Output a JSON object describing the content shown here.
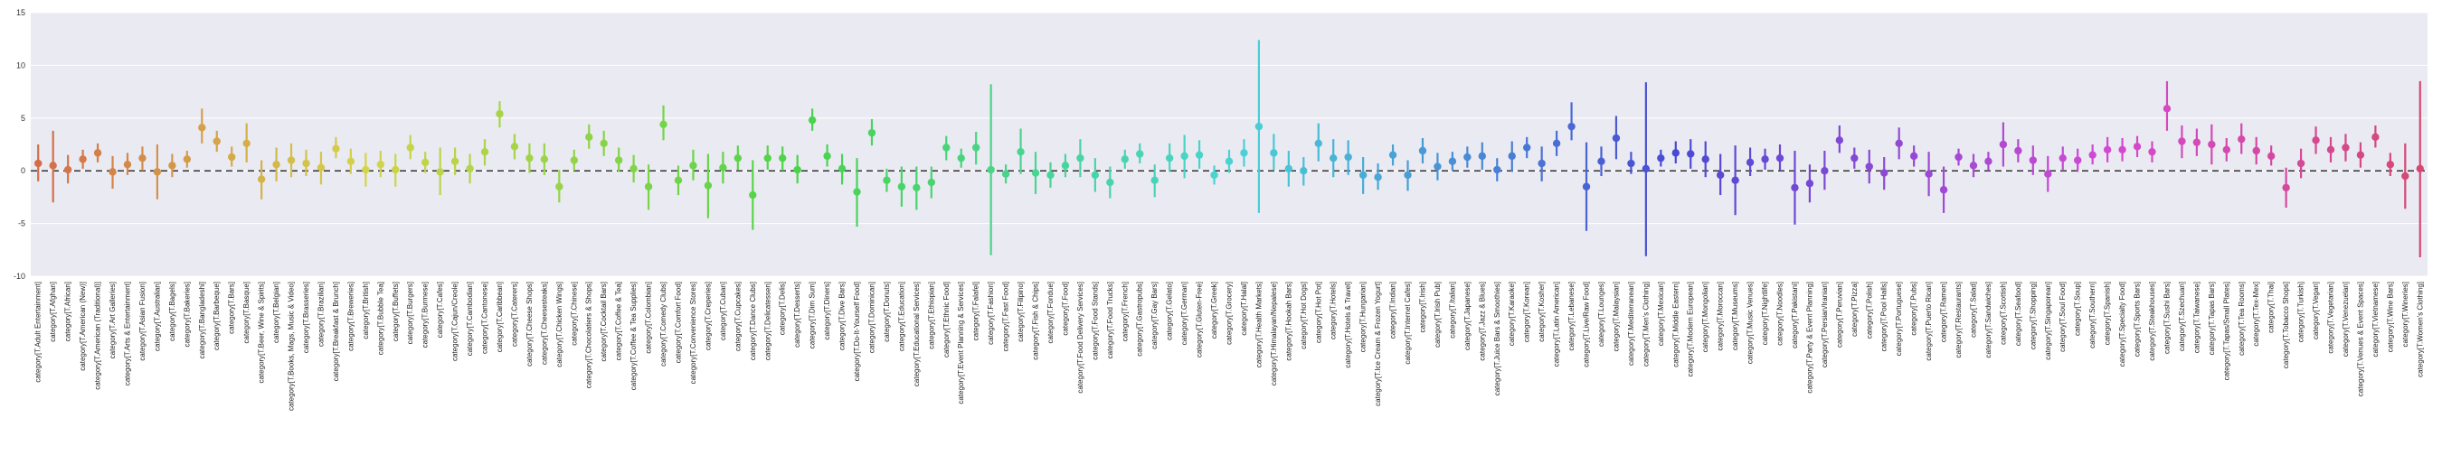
{
  "chart_data": {
    "type": "scatter",
    "title": "",
    "xlabel": "",
    "ylabel": "",
    "ylim": [
      -10,
      15
    ],
    "yticks": [
      -10,
      -5,
      0,
      5,
      10,
      15
    ],
    "grid": true,
    "reference_line": {
      "y": 0,
      "style": "dashed"
    },
    "palette": "husl",
    "points": [
      {
        "category": "category[T.Adult Entertainment]",
        "y": 0.7,
        "lo": -1.0,
        "hi": 2.5
      },
      {
        "category": "category[T.Afghan]",
        "y": 0.5,
        "lo": -3.0,
        "hi": 3.8
      },
      {
        "category": "category[T.African]",
        "y": 0.1,
        "lo": -1.2,
        "hi": 1.5
      },
      {
        "category": "category[T.American (New)]",
        "y": 1.1,
        "lo": 0.2,
        "hi": 2.0
      },
      {
        "category": "category[T.American (Traditional)]",
        "y": 1.7,
        "lo": 0.8,
        "hi": 2.6
      },
      {
        "category": "category[T.Art Galleries]",
        "y": -0.1,
        "lo": -1.7,
        "hi": 1.4
      },
      {
        "category": "category[T.Arts & Entertainment]",
        "y": 0.6,
        "lo": -0.4,
        "hi": 1.7
      },
      {
        "category": "category[T.Asian Fusion]",
        "y": 1.2,
        "lo": 0.0,
        "hi": 2.3
      },
      {
        "category": "category[T.Australian]",
        "y": -0.1,
        "lo": -2.7,
        "hi": 2.5
      },
      {
        "category": "category[T.Bagels]",
        "y": 0.5,
        "lo": -0.6,
        "hi": 1.6
      },
      {
        "category": "category[T.Bakeries]",
        "y": 1.1,
        "lo": 0.3,
        "hi": 1.9
      },
      {
        "category": "category[T.Bangladeshi]",
        "y": 4.1,
        "lo": 2.6,
        "hi": 5.9
      },
      {
        "category": "category[T.Barbeque]",
        "y": 2.8,
        "lo": 1.8,
        "hi": 3.8
      },
      {
        "category": "category[T.Bars]",
        "y": 1.3,
        "lo": 0.4,
        "hi": 2.3
      },
      {
        "category": "category[T.Basque]",
        "y": 2.6,
        "lo": 0.8,
        "hi": 4.5
      },
      {
        "category": "category[T.Beer, Wine & Spirits]",
        "y": -0.8,
        "lo": -2.7,
        "hi": 1.0
      },
      {
        "category": "category[T.Belgian]",
        "y": 0.6,
        "lo": -1.0,
        "hi": 2.2
      },
      {
        "category": "category[T.Books, Mags, Music & Video]",
        "y": 1.0,
        "lo": -0.6,
        "hi": 2.6
      },
      {
        "category": "category[T.Brasseries]",
        "y": 0.7,
        "lo": -0.5,
        "hi": 2.0
      },
      {
        "category": "category[T.Brazilian]",
        "y": 0.3,
        "lo": -1.3,
        "hi": 1.8
      },
      {
        "category": "category[T.Breakfast & Brunch]",
        "y": 2.1,
        "lo": 1.2,
        "hi": 3.2
      },
      {
        "category": "category[T.Breweries]",
        "y": 0.9,
        "lo": -0.3,
        "hi": 2.1
      },
      {
        "category": "category[T.British]",
        "y": 0.1,
        "lo": -1.5,
        "hi": 1.7
      },
      {
        "category": "category[T.Bubble Tea]",
        "y": 0.6,
        "lo": -0.6,
        "hi": 1.9
      },
      {
        "category": "category[T.Buffets]",
        "y": 0.1,
        "lo": -1.5,
        "hi": 1.6
      },
      {
        "category": "category[T.Burgers]",
        "y": 2.2,
        "lo": 1.1,
        "hi": 3.4
      },
      {
        "category": "category[T.Burmese]",
        "y": 0.8,
        "lo": -0.2,
        "hi": 1.8
      },
      {
        "category": "category[T.Cafes]",
        "y": -0.1,
        "lo": -2.3,
        "hi": 2.2
      },
      {
        "category": "category[T.Cajun/Creole]",
        "y": 0.9,
        "lo": -0.4,
        "hi": 2.2
      },
      {
        "category": "category[T.Cambodian]",
        "y": 0.2,
        "lo": -1.2,
        "hi": 1.6
      },
      {
        "category": "category[T.Cantonese]",
        "y": 1.8,
        "lo": 0.5,
        "hi": 3.0
      },
      {
        "category": "category[T.Caribbean]",
        "y": 5.4,
        "lo": 4.1,
        "hi": 6.6
      },
      {
        "category": "category[T.Caterers]",
        "y": 2.3,
        "lo": 1.1,
        "hi": 3.5
      },
      {
        "category": "category[T.Cheese Shops]",
        "y": 1.2,
        "lo": -0.2,
        "hi": 2.6
      },
      {
        "category": "category[T.Cheesesteaks]",
        "y": 1.1,
        "lo": -0.4,
        "hi": 2.6
      },
      {
        "category": "category[T.Chicken Wings]",
        "y": -1.5,
        "lo": -3.0,
        "hi": 0.1
      },
      {
        "category": "category[T.Chinese]",
        "y": 1.0,
        "lo": 0.0,
        "hi": 2.0
      },
      {
        "category": "category[T.Chocolatiers & Shops]",
        "y": 3.2,
        "lo": 2.1,
        "hi": 4.4
      },
      {
        "category": "category[T.Cocktail Bars]",
        "y": 2.6,
        "lo": 1.4,
        "hi": 3.8
      },
      {
        "category": "category[T.Coffee & Tea]",
        "y": 1.0,
        "lo": -0.1,
        "hi": 2.2
      },
      {
        "category": "category[T.Coffee & Tea Supplies]",
        "y": 0.2,
        "lo": -1.1,
        "hi": 1.5
      },
      {
        "category": "category[T.Colombian]",
        "y": -1.5,
        "lo": -3.7,
        "hi": 0.6
      },
      {
        "category": "category[T.Comedy Clubs]",
        "y": 4.4,
        "lo": 2.9,
        "hi": 6.2
      },
      {
        "category": "category[T.Comfort Food]",
        "y": -0.9,
        "lo": -2.3,
        "hi": 0.5
      },
      {
        "category": "category[T.Convenience Stores]",
        "y": 0.5,
        "lo": -0.9,
        "hi": 2.0
      },
      {
        "category": "category[T.Creperies]",
        "y": -1.4,
        "lo": -4.5,
        "hi": 1.6
      },
      {
        "category": "category[T.Cuban]",
        "y": 0.3,
        "lo": -1.2,
        "hi": 1.8
      },
      {
        "category": "category[T.Cupcakes]",
        "y": 1.2,
        "lo": 0.1,
        "hi": 2.4
      },
      {
        "category": "category[T.Dance Clubs]",
        "y": -2.3,
        "lo": -5.6,
        "hi": 1.0
      },
      {
        "category": "category[T.Delicatessen]",
        "y": 1.2,
        "lo": 0.1,
        "hi": 2.4
      },
      {
        "category": "category[T.Delis]",
        "y": 1.2,
        "lo": 0.0,
        "hi": 2.3
      },
      {
        "category": "category[T.Desserts]",
        "y": 0.1,
        "lo": -1.2,
        "hi": 1.5
      },
      {
        "category": "category[T.Dim Sum]",
        "y": 4.8,
        "lo": 3.8,
        "hi": 5.9
      },
      {
        "category": "category[T.Diners]",
        "y": 1.4,
        "lo": 0.4,
        "hi": 2.5
      },
      {
        "category": "category[T.Dive Bars]",
        "y": 0.2,
        "lo": -1.3,
        "hi": 1.6
      },
      {
        "category": "category[T.Do-It-Yourself Food]",
        "y": -2.0,
        "lo": -5.3,
        "hi": 1.2
      },
      {
        "category": "category[T.Dominican]",
        "y": 3.6,
        "lo": 2.4,
        "hi": 4.9
      },
      {
        "category": "category[T.Donuts]",
        "y": -0.9,
        "lo": -2.0,
        "hi": 0.2
      },
      {
        "category": "category[T.Education]",
        "y": -1.5,
        "lo": -3.4,
        "hi": 0.4
      },
      {
        "category": "category[T.Educational Services]",
        "y": -1.6,
        "lo": -3.7,
        "hi": 0.4
      },
      {
        "category": "category[T.Ethiopian]",
        "y": -1.1,
        "lo": -2.6,
        "hi": 0.4
      },
      {
        "category": "category[T.Ethnic Food]",
        "y": 2.2,
        "lo": 1.0,
        "hi": 3.3
      },
      {
        "category": "category[T.Event Planning & Services]",
        "y": 1.2,
        "lo": 0.3,
        "hi": 2.1
      },
      {
        "category": "category[T.Falafel]",
        "y": 2.2,
        "lo": 0.6,
        "hi": 3.7
      },
      {
        "category": "category[T.Fashion]",
        "y": 0.1,
        "lo": -8.0,
        "hi": 8.2
      },
      {
        "category": "category[T.Fast Food]",
        "y": -0.3,
        "lo": -1.2,
        "hi": 0.6
      },
      {
        "category": "category[T.Filipino]",
        "y": 1.8,
        "lo": -0.3,
        "hi": 4.0
      },
      {
        "category": "category[T.Fish & Chips]",
        "y": -0.2,
        "lo": -2.2,
        "hi": 1.8
      },
      {
        "category": "category[T.Fondue]",
        "y": -0.4,
        "lo": -1.6,
        "hi": 0.8
      },
      {
        "category": "category[T.Food]",
        "y": 0.5,
        "lo": -0.6,
        "hi": 1.6
      },
      {
        "category": "category[T.Food Delivery Services]",
        "y": 1.2,
        "lo": -0.6,
        "hi": 3.0
      },
      {
        "category": "category[T.Food Stands]",
        "y": -0.4,
        "lo": -2.0,
        "hi": 1.2
      },
      {
        "category": "category[T.Food Trucks]",
        "y": -1.1,
        "lo": -2.6,
        "hi": 0.4
      },
      {
        "category": "category[T.French]",
        "y": 1.1,
        "lo": 0.2,
        "hi": 2.0
      },
      {
        "category": "category[T.Gastropubs]",
        "y": 1.6,
        "lo": 0.7,
        "hi": 2.6
      },
      {
        "category": "category[T.Gay Bars]",
        "y": -0.9,
        "lo": -2.5,
        "hi": 0.6
      },
      {
        "category": "category[T.Gelato]",
        "y": 1.2,
        "lo": -0.1,
        "hi": 2.6
      },
      {
        "category": "category[T.German]",
        "y": 1.4,
        "lo": -0.7,
        "hi": 3.4
      },
      {
        "category": "category[T.Gluten-Free]",
        "y": 1.5,
        "lo": 0.2,
        "hi": 2.9
      },
      {
        "category": "category[T.Greek]",
        "y": -0.4,
        "lo": -1.3,
        "hi": 0.5
      },
      {
        "category": "category[T.Grocery]",
        "y": 0.9,
        "lo": -0.2,
        "hi": 2.0
      },
      {
        "category": "category[T.Halal]",
        "y": 1.7,
        "lo": 0.4,
        "hi": 3.0
      },
      {
        "category": "category[T.Health Markets]",
        "y": 4.2,
        "lo": -4.0,
        "hi": 12.4
      },
      {
        "category": "category[T.Himalayan/Nepalese]",
        "y": 1.7,
        "lo": 0.1,
        "hi": 3.5
      },
      {
        "category": "category[T.Hookah Bars]",
        "y": 0.2,
        "lo": -1.5,
        "hi": 1.9
      },
      {
        "category": "category[T.Hot Dogs]",
        "y": 0.0,
        "lo": -1.4,
        "hi": 1.3
      },
      {
        "category": "category[T.Hot Pot]",
        "y": 2.6,
        "lo": 0.9,
        "hi": 4.5
      },
      {
        "category": "category[T.Hotels]",
        "y": 1.2,
        "lo": -0.6,
        "hi": 3.0
      },
      {
        "category": "category[T.Hotels & Travel]",
        "y": 1.3,
        "lo": -0.4,
        "hi": 2.9
      },
      {
        "category": "category[T.Hungarian]",
        "y": -0.4,
        "lo": -2.2,
        "hi": 1.3
      },
      {
        "category": "category[T.Ice Cream & Frozen Yogurt]",
        "y": -0.6,
        "lo": -1.8,
        "hi": 0.7
      },
      {
        "category": "category[T.Indian]",
        "y": 1.5,
        "lo": 0.5,
        "hi": 2.5
      },
      {
        "category": "category[T.Internet Cafes]",
        "y": -0.4,
        "lo": -1.9,
        "hi": 1.0
      },
      {
        "category": "category[T.Irish]",
        "y": 1.9,
        "lo": 0.7,
        "hi": 3.1
      },
      {
        "category": "category[T.Irish Pub]",
        "y": 0.4,
        "lo": -0.9,
        "hi": 1.7
      },
      {
        "category": "category[T.Italian]",
        "y": 0.9,
        "lo": 0.0,
        "hi": 1.8
      },
      {
        "category": "category[T.Japanese]",
        "y": 1.3,
        "lo": 0.3,
        "hi": 2.3
      },
      {
        "category": "category[T.Jazz & Blues]",
        "y": 1.4,
        "lo": 0.1,
        "hi": 2.7
      },
      {
        "category": "category[T.Juice Bars & Smoothies]",
        "y": 0.1,
        "lo": -1.0,
        "hi": 1.2
      },
      {
        "category": "category[T.Karaoke]",
        "y": 1.4,
        "lo": -0.1,
        "hi": 2.8
      },
      {
        "category": "category[T.Korean]",
        "y": 2.2,
        "lo": 1.2,
        "hi": 3.2
      },
      {
        "category": "category[T.Kosher]",
        "y": 0.7,
        "lo": -1.0,
        "hi": 2.3
      },
      {
        "category": "category[T.Latin American]",
        "y": 2.6,
        "lo": 1.4,
        "hi": 3.8
      },
      {
        "category": "category[T.Lebanese]",
        "y": 4.2,
        "lo": 2.9,
        "hi": 6.5
      },
      {
        "category": "category[T.Live/Raw Food]",
        "y": -1.5,
        "lo": -5.7,
        "hi": 2.7
      },
      {
        "category": "category[T.Lounges]",
        "y": 0.9,
        "lo": -0.5,
        "hi": 2.3
      },
      {
        "category": "category[T.Malaysian]",
        "y": 3.1,
        "lo": 1.1,
        "hi": 5.2
      },
      {
        "category": "category[T.Mediterranean]",
        "y": 0.7,
        "lo": -0.3,
        "hi": 1.8
      },
      {
        "category": "category[T.Men's Clothing]",
        "y": 0.2,
        "lo": -8.1,
        "hi": 8.4
      },
      {
        "category": "category[T.Mexican]",
        "y": 1.2,
        "lo": 0.4,
        "hi": 2.0
      },
      {
        "category": "category[T.Middle Eastern]",
        "y": 1.7,
        "lo": 0.7,
        "hi": 2.8
      },
      {
        "category": "category[T.Modern European]",
        "y": 1.6,
        "lo": 0.2,
        "hi": 3.0
      },
      {
        "category": "category[T.Mongolian]",
        "y": 1.1,
        "lo": -0.6,
        "hi": 2.8
      },
      {
        "category": "category[T.Moroccan]",
        "y": -0.4,
        "lo": -2.3,
        "hi": 1.6
      },
      {
        "category": "category[T.Museums]",
        "y": -0.9,
        "lo": -4.2,
        "hi": 2.4
      },
      {
        "category": "category[T.Music Venues]",
        "y": 0.8,
        "lo": -0.5,
        "hi": 2.2
      },
      {
        "category": "category[T.Nightlife]",
        "y": 1.1,
        "lo": 0.1,
        "hi": 2.1
      },
      {
        "category": "category[T.Noodles]",
        "y": 1.2,
        "lo": 0.0,
        "hi": 2.5
      },
      {
        "category": "category[T.Pakistani]",
        "y": -1.6,
        "lo": -5.1,
        "hi": 1.9
      },
      {
        "category": "category[T.Party & Event Planning]",
        "y": -1.2,
        "lo": -3.0,
        "hi": 0.6
      },
      {
        "category": "category[T.Persian/Iranian]",
        "y": 0.0,
        "lo": -1.8,
        "hi": 1.9
      },
      {
        "category": "category[T.Peruvian]",
        "y": 2.9,
        "lo": 1.7,
        "hi": 4.3
      },
      {
        "category": "category[T.Pizza]",
        "y": 1.2,
        "lo": 0.2,
        "hi": 2.2
      },
      {
        "category": "category[T.Polish]",
        "y": 0.4,
        "lo": -1.2,
        "hi": 2.0
      },
      {
        "category": "category[T.Pool Halls]",
        "y": -0.2,
        "lo": -1.8,
        "hi": 1.3
      },
      {
        "category": "category[T.Portuguese]",
        "y": 2.6,
        "lo": 1.1,
        "hi": 4.1
      },
      {
        "category": "category[T.Pubs]",
        "y": 1.4,
        "lo": 0.4,
        "hi": 2.4
      },
      {
        "category": "category[T.Puerto Rican]",
        "y": -0.3,
        "lo": -2.4,
        "hi": 1.8
      },
      {
        "category": "category[T.Ramen]",
        "y": -1.8,
        "lo": -4.0,
        "hi": 0.4
      },
      {
        "category": "category[T.Restaurants]",
        "y": 1.3,
        "lo": 0.5,
        "hi": 2.1
      },
      {
        "category": "category[T.Salad]",
        "y": 0.5,
        "lo": -0.6,
        "hi": 1.6
      },
      {
        "category": "category[T.Sandwiches]",
        "y": 0.9,
        "lo": 0.0,
        "hi": 1.8
      },
      {
        "category": "category[T.Scottish]",
        "y": 2.5,
        "lo": 0.4,
        "hi": 4.6
      },
      {
        "category": "category[T.Seafood]",
        "y": 1.9,
        "lo": 0.8,
        "hi": 3.0
      },
      {
        "category": "category[T.Shopping]",
        "y": 1.0,
        "lo": -0.4,
        "hi": 2.4
      },
      {
        "category": "category[T.Singaporean]",
        "y": -0.3,
        "lo": -2.0,
        "hi": 1.4
      },
      {
        "category": "category[T.Soul Food]",
        "y": 1.2,
        "lo": 0.1,
        "hi": 2.3
      },
      {
        "category": "category[T.Soup]",
        "y": 1.0,
        "lo": -0.1,
        "hi": 2.1
      },
      {
        "category": "category[T.Southern]",
        "y": 1.5,
        "lo": 0.6,
        "hi": 2.5
      },
      {
        "category": "category[T.Spanish]",
        "y": 2.0,
        "lo": 0.8,
        "hi": 3.2
      },
      {
        "category": "category[T.Specialty Food]",
        "y": 2.0,
        "lo": 0.9,
        "hi": 3.1
      },
      {
        "category": "category[T.Sports Bars]",
        "y": 2.3,
        "lo": 1.3,
        "hi": 3.3
      },
      {
        "category": "category[T.Steakhouses]",
        "y": 1.8,
        "lo": 0.8,
        "hi": 2.8
      },
      {
        "category": "category[T.Sushi Bars]",
        "y": 5.9,
        "lo": 3.8,
        "hi": 8.5
      },
      {
        "category": "category[T.Szechuan]",
        "y": 2.8,
        "lo": 1.2,
        "hi": 4.3
      },
      {
        "category": "category[T.Taiwanese]",
        "y": 2.7,
        "lo": 1.4,
        "hi": 4.0
      },
      {
        "category": "category[T.Tapas Bars]",
        "y": 2.5,
        "lo": 0.6,
        "hi": 4.4
      },
      {
        "category": "category[T.Tapas/Small Plates]",
        "y": 2.0,
        "lo": 0.9,
        "hi": 3.1
      },
      {
        "category": "category[T.Tea Rooms]",
        "y": 3.0,
        "lo": 1.6,
        "hi": 4.5
      },
      {
        "category": "category[T.Tex-Mex]",
        "y": 1.9,
        "lo": 0.6,
        "hi": 3.2
      },
      {
        "category": "category[T.Thai]",
        "y": 1.4,
        "lo": 0.5,
        "hi": 2.4
      },
      {
        "category": "category[T.Tobacco Shops]",
        "y": -1.6,
        "lo": -3.5,
        "hi": 0.3
      },
      {
        "category": "category[T.Turkish]",
        "y": 0.7,
        "lo": -0.7,
        "hi": 2.1
      },
      {
        "category": "category[T.Vegan]",
        "y": 2.9,
        "lo": 1.6,
        "hi": 4.2
      },
      {
        "category": "category[T.Vegetarian]",
        "y": 2.0,
        "lo": 0.8,
        "hi": 3.2
      },
      {
        "category": "category[T.Venezuelan]",
        "y": 2.2,
        "lo": 0.9,
        "hi": 3.5
      },
      {
        "category": "category[T.Venues & Event Spaces]",
        "y": 1.5,
        "lo": 0.3,
        "hi": 2.7
      },
      {
        "category": "category[T.Vietnamese]",
        "y": 3.2,
        "lo": 2.2,
        "hi": 4.3
      },
      {
        "category": "category[T.Wine Bars]",
        "y": 0.6,
        "lo": -0.5,
        "hi": 1.7
      },
      {
        "category": "category[T.Wineries]",
        "y": -0.5,
        "lo": -3.6,
        "hi": 2.6
      },
      {
        "category": "category[T.Women's Clothing]",
        "y": 0.2,
        "lo": -8.2,
        "hi": 8.5
      }
    ]
  }
}
